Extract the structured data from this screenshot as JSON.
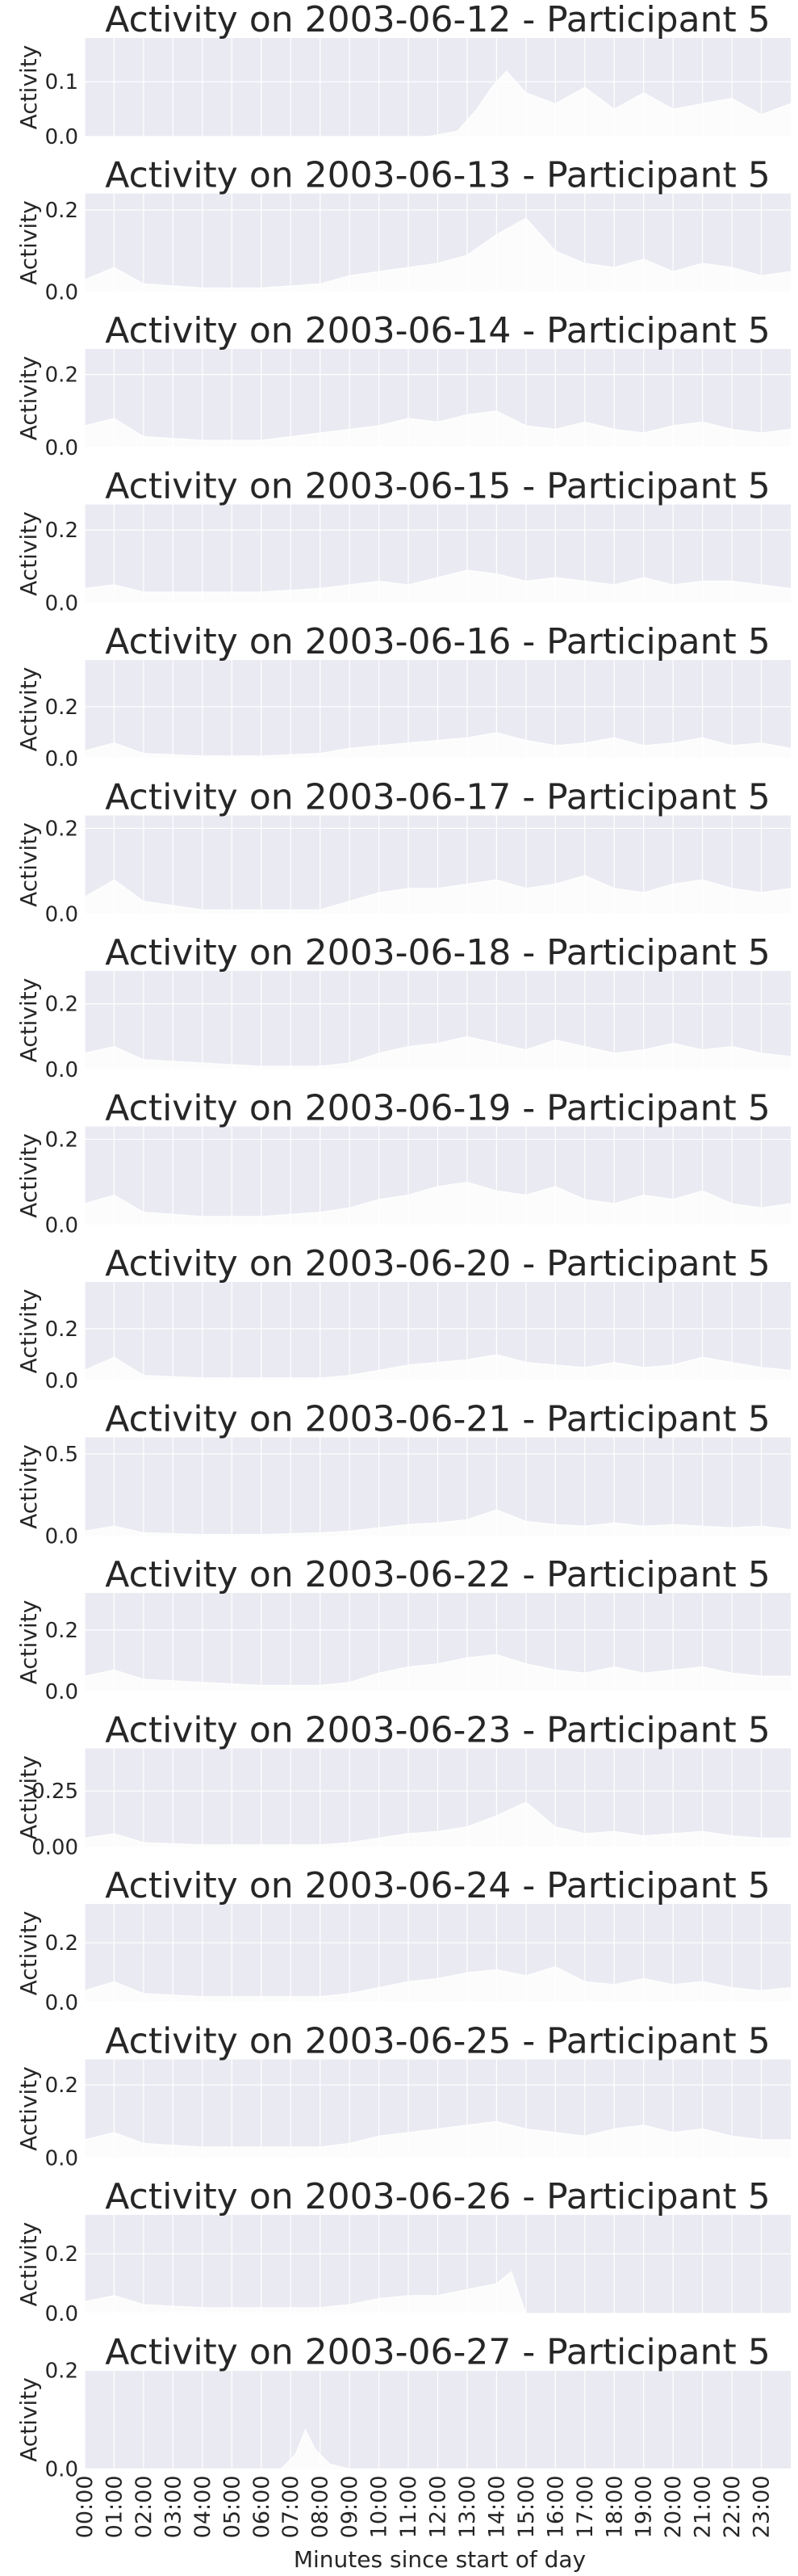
{
  "figure": {
    "xlabel": "Minutes since start of day",
    "xtick_labels": [
      "00:00",
      "01:00",
      "02:00",
      "03:00",
      "04:00",
      "05:00",
      "06:00",
      "07:00",
      "08:00",
      "09:00",
      "10:00",
      "11:00",
      "12:00",
      "13:00",
      "14:00",
      "15:00",
      "16:00",
      "17:00",
      "18:00",
      "19:00",
      "20:00",
      "21:00",
      "22:00",
      "23:00"
    ],
    "colors": {
      "axes_bg": "#eaeaf2",
      "grid": "#ffffff",
      "fill": "#ffffff",
      "text": "#262626"
    }
  },
  "chart_data": [
    {
      "type": "area",
      "title": "Activity on 2003-06-12 - Participant 5",
      "ylabel": "Activity",
      "xlim": [
        0,
        1440
      ],
      "ylim": [
        0,
        0.18
      ],
      "yticks": [
        0,
        0.1
      ],
      "ytick_labels": [
        "0.0",
        "0.1"
      ],
      "x": [
        0,
        120,
        240,
        360,
        480,
        600,
        700,
        760,
        800,
        830,
        860,
        900,
        960,
        1020,
        1080,
        1140,
        1200,
        1260,
        1320,
        1380,
        1439
      ],
      "y": [
        0.0,
        0.0,
        0.0,
        0.0,
        0.0,
        0.0,
        0.0,
        0.01,
        0.05,
        0.09,
        0.12,
        0.08,
        0.06,
        0.09,
        0.05,
        0.08,
        0.05,
        0.06,
        0.07,
        0.04,
        0.06
      ]
    },
    {
      "type": "area",
      "title": "Activity on 2003-06-13 - Participant 5",
      "ylabel": "Activity",
      "xlim": [
        0,
        1440
      ],
      "ylim": [
        0,
        0.24
      ],
      "yticks": [
        0,
        0.2
      ],
      "ytick_labels": [
        "0.0",
        "0.2"
      ],
      "x": [
        0,
        60,
        120,
        240,
        360,
        480,
        540,
        600,
        660,
        720,
        780,
        840,
        900,
        960,
        1020,
        1080,
        1140,
        1200,
        1260,
        1320,
        1380,
        1439
      ],
      "y": [
        0.03,
        0.06,
        0.02,
        0.01,
        0.01,
        0.02,
        0.04,
        0.05,
        0.06,
        0.07,
        0.09,
        0.14,
        0.18,
        0.1,
        0.07,
        0.06,
        0.08,
        0.05,
        0.07,
        0.06,
        0.04,
        0.05
      ]
    },
    {
      "type": "area",
      "title": "Activity on 2003-06-14 - Participant 5",
      "ylabel": "Activity",
      "xlim": [
        0,
        1440
      ],
      "ylim": [
        0,
        0.27
      ],
      "yticks": [
        0,
        0.2
      ],
      "ytick_labels": [
        "0.0",
        "0.2"
      ],
      "x": [
        0,
        60,
        120,
        240,
        360,
        480,
        600,
        660,
        720,
        780,
        840,
        900,
        960,
        1020,
        1080,
        1140,
        1200,
        1260,
        1320,
        1380,
        1439
      ],
      "y": [
        0.06,
        0.08,
        0.03,
        0.02,
        0.02,
        0.04,
        0.06,
        0.08,
        0.07,
        0.09,
        0.1,
        0.06,
        0.05,
        0.07,
        0.05,
        0.04,
        0.06,
        0.07,
        0.05,
        0.04,
        0.05
      ]
    },
    {
      "type": "area",
      "title": "Activity on 2003-06-15 - Participant 5",
      "ylabel": "Activity",
      "xlim": [
        0,
        1440
      ],
      "ylim": [
        0,
        0.27
      ],
      "yticks": [
        0,
        0.2
      ],
      "ytick_labels": [
        "0.0",
        "0.2"
      ],
      "x": [
        0,
        60,
        120,
        240,
        360,
        480,
        600,
        660,
        720,
        780,
        840,
        900,
        960,
        1020,
        1080,
        1140,
        1200,
        1260,
        1320,
        1380,
        1439
      ],
      "y": [
        0.04,
        0.05,
        0.03,
        0.03,
        0.03,
        0.04,
        0.06,
        0.05,
        0.07,
        0.09,
        0.08,
        0.06,
        0.07,
        0.06,
        0.05,
        0.07,
        0.05,
        0.06,
        0.06,
        0.05,
        0.04
      ]
    },
    {
      "type": "area",
      "title": "Activity on 2003-06-16 - Participant 5",
      "ylabel": "Activity",
      "xlim": [
        0,
        1440
      ],
      "ylim": [
        0,
        0.38
      ],
      "yticks": [
        0,
        0.2
      ],
      "ytick_labels": [
        "0.0",
        "0.2"
      ],
      "x": [
        0,
        60,
        120,
        240,
        360,
        480,
        540,
        600,
        660,
        720,
        780,
        840,
        900,
        960,
        1020,
        1080,
        1140,
        1200,
        1260,
        1320,
        1380,
        1439
      ],
      "y": [
        0.03,
        0.06,
        0.02,
        0.01,
        0.01,
        0.02,
        0.04,
        0.05,
        0.06,
        0.07,
        0.08,
        0.1,
        0.07,
        0.05,
        0.06,
        0.08,
        0.05,
        0.06,
        0.08,
        0.05,
        0.06,
        0.04
      ]
    },
    {
      "type": "area",
      "title": "Activity on 2003-06-17 - Participant 5",
      "ylabel": "Activity",
      "xlim": [
        0,
        1440
      ],
      "ylim": [
        0,
        0.23
      ],
      "yticks": [
        0,
        0.2
      ],
      "ytick_labels": [
        "0.0",
        "0.2"
      ],
      "x": [
        0,
        60,
        120,
        240,
        360,
        480,
        540,
        600,
        660,
        720,
        780,
        840,
        900,
        960,
        1020,
        1080,
        1140,
        1200,
        1260,
        1320,
        1380,
        1439
      ],
      "y": [
        0.04,
        0.08,
        0.03,
        0.01,
        0.01,
        0.01,
        0.03,
        0.05,
        0.06,
        0.06,
        0.07,
        0.08,
        0.06,
        0.07,
        0.09,
        0.06,
        0.05,
        0.07,
        0.08,
        0.06,
        0.05,
        0.06
      ]
    },
    {
      "type": "area",
      "title": "Activity on 2003-06-18 - Participant 5",
      "ylabel": "Activity",
      "xlim": [
        0,
        1440
      ],
      "ylim": [
        0,
        0.3
      ],
      "yticks": [
        0,
        0.2
      ],
      "ytick_labels": [
        "0.0",
        "0.2"
      ],
      "x": [
        0,
        60,
        120,
        240,
        360,
        480,
        540,
        600,
        660,
        720,
        780,
        840,
        900,
        960,
        1020,
        1080,
        1140,
        1200,
        1260,
        1320,
        1380,
        1439
      ],
      "y": [
        0.05,
        0.07,
        0.03,
        0.02,
        0.01,
        0.01,
        0.02,
        0.05,
        0.07,
        0.08,
        0.1,
        0.08,
        0.06,
        0.09,
        0.07,
        0.05,
        0.06,
        0.08,
        0.06,
        0.07,
        0.05,
        0.04
      ]
    },
    {
      "type": "area",
      "title": "Activity on 2003-06-19 - Participant 5",
      "ylabel": "Activity",
      "xlim": [
        0,
        1440
      ],
      "ylim": [
        0,
        0.23
      ],
      "yticks": [
        0,
        0.2
      ],
      "ytick_labels": [
        "0.0",
        "0.2"
      ],
      "x": [
        0,
        60,
        120,
        240,
        360,
        480,
        540,
        600,
        660,
        720,
        780,
        840,
        900,
        960,
        1020,
        1080,
        1140,
        1200,
        1260,
        1320,
        1380,
        1439
      ],
      "y": [
        0.05,
        0.07,
        0.03,
        0.02,
        0.02,
        0.03,
        0.04,
        0.06,
        0.07,
        0.09,
        0.1,
        0.08,
        0.07,
        0.09,
        0.06,
        0.05,
        0.07,
        0.06,
        0.08,
        0.05,
        0.04,
        0.05
      ]
    },
    {
      "type": "area",
      "title": "Activity on 2003-06-20 - Participant 5",
      "ylabel": "Activity",
      "xlim": [
        0,
        1440
      ],
      "ylim": [
        0,
        0.38
      ],
      "yticks": [
        0,
        0.2
      ],
      "ytick_labels": [
        "0.0",
        "0.2"
      ],
      "x": [
        0,
        60,
        120,
        240,
        360,
        480,
        540,
        600,
        660,
        720,
        780,
        840,
        900,
        960,
        1020,
        1080,
        1140,
        1200,
        1260,
        1320,
        1380,
        1439
      ],
      "y": [
        0.04,
        0.09,
        0.02,
        0.01,
        0.01,
        0.01,
        0.02,
        0.04,
        0.06,
        0.07,
        0.08,
        0.1,
        0.07,
        0.06,
        0.05,
        0.07,
        0.05,
        0.06,
        0.09,
        0.07,
        0.05,
        0.04
      ]
    },
    {
      "type": "area",
      "title": "Activity on 2003-06-21 - Participant 5",
      "ylabel": "Activity",
      "xlim": [
        0,
        1440
      ],
      "ylim": [
        0,
        0.6
      ],
      "yticks": [
        0,
        0.5
      ],
      "ytick_labels": [
        "0.0",
        "0.5"
      ],
      "x": [
        0,
        60,
        120,
        240,
        360,
        480,
        540,
        600,
        660,
        720,
        780,
        840,
        900,
        960,
        1020,
        1080,
        1140,
        1200,
        1260,
        1320,
        1380,
        1439
      ],
      "y": [
        0.03,
        0.06,
        0.02,
        0.01,
        0.01,
        0.02,
        0.03,
        0.05,
        0.07,
        0.08,
        0.1,
        0.16,
        0.09,
        0.07,
        0.06,
        0.08,
        0.06,
        0.07,
        0.06,
        0.05,
        0.06,
        0.04
      ]
    },
    {
      "type": "area",
      "title": "Activity on 2003-06-22 - Participant 5",
      "ylabel": "Activity",
      "xlim": [
        0,
        1440
      ],
      "ylim": [
        0,
        0.32
      ],
      "yticks": [
        0,
        0.2
      ],
      "ytick_labels": [
        "0.0",
        "0.2"
      ],
      "x": [
        0,
        60,
        120,
        240,
        360,
        480,
        540,
        600,
        660,
        720,
        780,
        840,
        900,
        960,
        1020,
        1080,
        1140,
        1200,
        1260,
        1320,
        1380,
        1439
      ],
      "y": [
        0.05,
        0.07,
        0.04,
        0.03,
        0.02,
        0.02,
        0.03,
        0.06,
        0.08,
        0.09,
        0.11,
        0.12,
        0.09,
        0.07,
        0.06,
        0.08,
        0.06,
        0.07,
        0.08,
        0.06,
        0.05,
        0.05
      ]
    },
    {
      "type": "area",
      "title": "Activity on 2003-06-23 - Participant 5",
      "ylabel": "Activity",
      "xlim": [
        0,
        1440
      ],
      "ylim": [
        0,
        0.44
      ],
      "yticks": [
        0,
        0.25
      ],
      "ytick_labels": [
        "0.00",
        "0.25"
      ],
      "x": [
        0,
        60,
        120,
        240,
        360,
        480,
        540,
        600,
        660,
        720,
        780,
        840,
        900,
        960,
        1020,
        1080,
        1140,
        1200,
        1260,
        1320,
        1380,
        1439
      ],
      "y": [
        0.04,
        0.06,
        0.02,
        0.01,
        0.01,
        0.01,
        0.02,
        0.04,
        0.06,
        0.07,
        0.09,
        0.14,
        0.2,
        0.09,
        0.06,
        0.07,
        0.05,
        0.06,
        0.07,
        0.05,
        0.04,
        0.04
      ]
    },
    {
      "type": "area",
      "title": "Activity on 2003-06-24 - Participant 5",
      "ylabel": "Activity",
      "xlim": [
        0,
        1440
      ],
      "ylim": [
        0,
        0.33
      ],
      "yticks": [
        0,
        0.2
      ],
      "ytick_labels": [
        "0.0",
        "0.2"
      ],
      "x": [
        0,
        60,
        120,
        240,
        360,
        480,
        540,
        600,
        660,
        720,
        780,
        840,
        900,
        960,
        1020,
        1080,
        1140,
        1200,
        1260,
        1320,
        1380,
        1439
      ],
      "y": [
        0.04,
        0.07,
        0.03,
        0.02,
        0.02,
        0.02,
        0.03,
        0.05,
        0.07,
        0.08,
        0.1,
        0.11,
        0.09,
        0.12,
        0.07,
        0.06,
        0.08,
        0.06,
        0.07,
        0.05,
        0.04,
        0.05
      ]
    },
    {
      "type": "area",
      "title": "Activity on 2003-06-25 - Participant 5",
      "ylabel": "Activity",
      "xlim": [
        0,
        1440
      ],
      "ylim": [
        0,
        0.27
      ],
      "yticks": [
        0,
        0.2
      ],
      "ytick_labels": [
        "0.0",
        "0.2"
      ],
      "x": [
        0,
        60,
        120,
        240,
        360,
        480,
        540,
        600,
        660,
        720,
        780,
        840,
        900,
        960,
        1020,
        1080,
        1140,
        1200,
        1260,
        1320,
        1380,
        1439
      ],
      "y": [
        0.05,
        0.07,
        0.04,
        0.03,
        0.03,
        0.03,
        0.04,
        0.06,
        0.07,
        0.08,
        0.09,
        0.1,
        0.08,
        0.07,
        0.06,
        0.08,
        0.09,
        0.07,
        0.08,
        0.06,
        0.05,
        0.05
      ]
    },
    {
      "type": "area",
      "title": "Activity on 2003-06-26 - Participant 5",
      "ylabel": "Activity",
      "xlim": [
        0,
        1440
      ],
      "ylim": [
        0,
        0.33
      ],
      "yticks": [
        0,
        0.2
      ],
      "ytick_labels": [
        "0.0",
        "0.2"
      ],
      "x": [
        0,
        60,
        120,
        240,
        360,
        480,
        540,
        600,
        660,
        720,
        780,
        840,
        870,
        900,
        960,
        1080,
        1200,
        1320,
        1439
      ],
      "y": [
        0.04,
        0.06,
        0.03,
        0.02,
        0.02,
        0.02,
        0.03,
        0.05,
        0.06,
        0.06,
        0.08,
        0.1,
        0.14,
        0.0,
        0.0,
        0.0,
        0.0,
        0.0,
        0.0
      ]
    },
    {
      "type": "area",
      "title": "Activity on 2003-06-27 - Participant 5",
      "ylabel": "Activity",
      "xlim": [
        0,
        1440
      ],
      "ylim": [
        0,
        0.2
      ],
      "yticks": [
        0,
        0.2
      ],
      "ytick_labels": [
        "0.0",
        "0.2"
      ],
      "x": [
        0,
        120,
        240,
        360,
        400,
        430,
        450,
        470,
        500,
        540,
        600,
        720,
        840,
        960,
        1080,
        1200,
        1320,
        1439
      ],
      "y": [
        0.0,
        0.0,
        0.0,
        0.0,
        0.0,
        0.03,
        0.08,
        0.04,
        0.01,
        0.0,
        0.0,
        0.0,
        0.0,
        0.0,
        0.0,
        0.0,
        0.0,
        0.0
      ]
    }
  ]
}
